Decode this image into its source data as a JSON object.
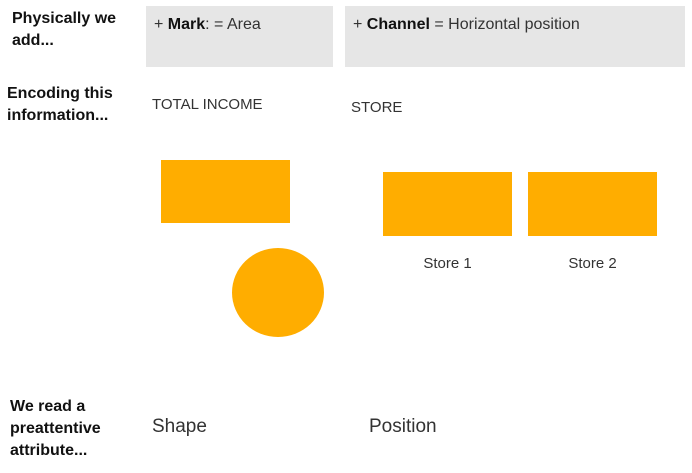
{
  "rows": {
    "added": "Physically we add...",
    "encoding": "Encoding this information...",
    "read": "We read a preattentive attribute..."
  },
  "mark_box": {
    "prefix": "+ ",
    "term": "Mark",
    "rest": ": = Area"
  },
  "channel_box": {
    "prefix": "+ ",
    "term": "Channel",
    "rest": " = Horizontal position"
  },
  "mark_caption": "TOTAL INCOME",
  "channel_caption": "STORE",
  "store_labels": [
    "Store 1",
    "Store 2"
  ],
  "attributes": {
    "left": "Shape",
    "right": "Position"
  },
  "colors": {
    "mark_fill": "#ffad00",
    "box_bg": "#e6e6e6"
  }
}
